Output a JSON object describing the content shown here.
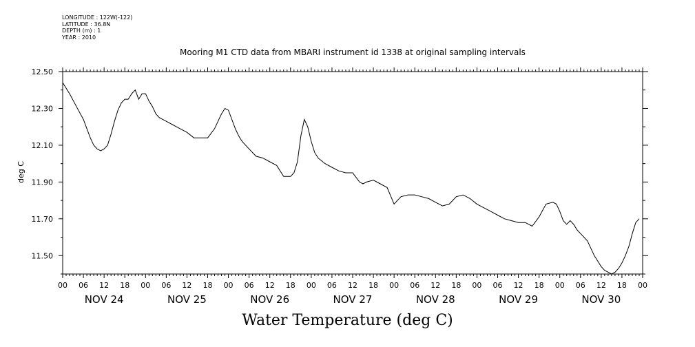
{
  "meta": {
    "longitude": "LONGITUDE : 122W(-122)",
    "latitude": "LATITUDE : 36.8N",
    "depth": "DEPTH (m) : 1",
    "year": "YEAR : 2010"
  },
  "chart_data": {
    "type": "line",
    "title": "Mooring M1 CTD data from MBARI instrument id 1338 at original sampling intervals",
    "xlabel": "Water Temperature (deg C)",
    "ylabel": "deg C",
    "ylim": [
      11.4,
      12.5
    ],
    "yticks": [
      "12.50",
      "12.30",
      "12.10",
      "11.90",
      "11.70",
      "11.50"
    ],
    "xlim_hours": [
      0,
      168
    ],
    "hour_ticks": [
      "00",
      "06",
      "12",
      "18",
      "00",
      "06",
      "12",
      "18",
      "00",
      "06",
      "12",
      "18",
      "00",
      "06",
      "12",
      "18",
      "00",
      "06",
      "12",
      "18",
      "00",
      "06",
      "12",
      "18",
      "00",
      "06",
      "12",
      "18",
      "00"
    ],
    "day_labels": [
      "NOV 24",
      "NOV 25",
      "NOV 26",
      "NOV 27",
      "NOV 28",
      "NOV 29",
      "NOV 30"
    ],
    "grid": false,
    "colors": {
      "line": "#000000",
      "axis": "#000000"
    },
    "series": [
      {
        "x": [
          0,
          2,
          4,
          6,
          8,
          9,
          10,
          11,
          12,
          13,
          14,
          15,
          16,
          17,
          18,
          19,
          20,
          21,
          22,
          23,
          24,
          25,
          26,
          27,
          28,
          30,
          32,
          34,
          36,
          38,
          40,
          42,
          44,
          45,
          46,
          47,
          48,
          49,
          50,
          51,
          52,
          54,
          56,
          58,
          60,
          62,
          64,
          66,
          67,
          68,
          69,
          70,
          71,
          72,
          73,
          74,
          76,
          78,
          80,
          82,
          84,
          86,
          87,
          88,
          90,
          92,
          94,
          96,
          98,
          100,
          102,
          104,
          106,
          108,
          110,
          112,
          114,
          116,
          118,
          120,
          122,
          124,
          126,
          128,
          130,
          132,
          134,
          136,
          138,
          140,
          142,
          143,
          144,
          145,
          146,
          147,
          148,
          149,
          150,
          152,
          154,
          156,
          157,
          158,
          159,
          160,
          161,
          162,
          163,
          164,
          165,
          166,
          167
        ],
        "y": [
          12.44,
          12.38,
          12.31,
          12.24,
          12.14,
          12.1,
          12.08,
          12.07,
          12.08,
          12.1,
          12.16,
          12.23,
          12.29,
          12.33,
          12.35,
          12.35,
          12.38,
          12.4,
          12.35,
          12.38,
          12.38,
          12.34,
          12.31,
          12.27,
          12.25,
          12.23,
          12.21,
          12.19,
          12.17,
          12.14,
          12.14,
          12.14,
          12.19,
          12.23,
          12.27,
          12.3,
          12.29,
          12.24,
          12.19,
          12.15,
          12.12,
          12.08,
          12.04,
          12.03,
          12.01,
          11.99,
          11.93,
          11.93,
          11.95,
          12.01,
          12.15,
          12.24,
          12.2,
          12.12,
          12.06,
          12.03,
          12.0,
          11.98,
          11.96,
          11.95,
          11.95,
          11.9,
          11.89,
          11.9,
          11.91,
          11.89,
          11.87,
          11.78,
          11.82,
          11.83,
          11.83,
          11.82,
          11.81,
          11.79,
          11.77,
          11.78,
          11.82,
          11.83,
          11.81,
          11.78,
          11.76,
          11.74,
          11.72,
          11.7,
          11.69,
          11.68,
          11.68,
          11.66,
          11.71,
          11.78,
          11.79,
          11.78,
          11.74,
          11.69,
          11.67,
          11.69,
          11.67,
          11.64,
          11.62,
          11.58,
          11.5,
          11.44,
          11.42,
          11.41,
          11.4,
          11.41,
          11.43,
          11.46,
          11.5,
          11.55,
          11.62,
          11.68,
          11.7
        ]
      }
    ]
  }
}
